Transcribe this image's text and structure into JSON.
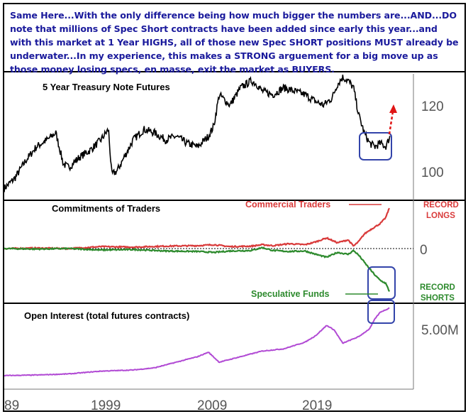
{
  "commentary": "Same Here...With the only difference being how much bigger the numbers are...AND...DO note that millions of Spec Short contracts have been added since early this year...and with this market at 1 Year HIGHS, all of those new Spec SHORT positions MUST already be underwater...In my experience, this makes a STRONG arguement for a big move up as those money losing specs, en masse, exit the market as BUYERS.",
  "colors": {
    "commentary_text": "#1a1a9c",
    "commercial": "#d93a3a",
    "speculative": "#2d8a2d",
    "open_interest": "#b14ad4",
    "highlight_box": "#3344aa",
    "arrow": "#e01515",
    "axis_text": "#555555"
  },
  "chart_data": [
    {
      "type": "line",
      "title": "5 Year Treasury Note Futures",
      "ylim": [
        93,
        128
      ],
      "y_ticks": [
        "120",
        "100"
      ],
      "series": [
        {
          "x": [
            1989.0,
            1990.0,
            1991.0,
            1992.0,
            1993.0,
            1993.8,
            1994.5,
            1995.0,
            1996.0,
            1997.0,
            1998.0,
            1998.7,
            1999.0,
            1999.5,
            2000.0,
            2000.5,
            2001.0,
            2002.0,
            2003.0,
            2004.0,
            2005.0,
            2006.0,
            2007.0,
            2008.0,
            2008.5,
            2009.0,
            2010.0,
            2011.0,
            2012.0,
            2012.5,
            2013.0,
            2014.0,
            2015.0,
            2016.0,
            2017.0,
            2018.0,
            2018.7,
            2019.5,
            2020.0,
            2020.5,
            2021.0,
            2021.5,
            2022.0,
            2022.5,
            2023.0,
            2023.5,
            2024.0,
            2024.5,
            2024.9
          ],
          "values": [
            95,
            98,
            103,
            107,
            109,
            111,
            102,
            101,
            104,
            106,
            109,
            112,
            99,
            100,
            103,
            106,
            109,
            112,
            111,
            109,
            110,
            108,
            107,
            110,
            113,
            122,
            119,
            124,
            126,
            125,
            123,
            122,
            124,
            123,
            122,
            120,
            119,
            121,
            125,
            127,
            126,
            124,
            116,
            111,
            108,
            107,
            108,
            107,
            110
          ]
        }
      ]
    },
    {
      "type": "line",
      "title": "Commitments of Traders",
      "ylim": [
        -1,
        1
      ],
      "y_ticks": [
        "0"
      ],
      "annotations": [
        "RECORD",
        "LONGS",
        "RECORD",
        "SHORTS"
      ],
      "series": [
        {
          "name": "Commercial Traders",
          "x": [
            1989,
            1992,
            1995,
            1998,
            2001,
            2004,
            2007,
            2008.5,
            2010,
            2012,
            2013,
            2014,
            2015.5,
            2017,
            2018,
            2019,
            2020,
            2021,
            2021.5,
            2022,
            2022.5,
            2023,
            2023.5,
            2024,
            2024.5,
            2024.9
          ],
          "values": [
            0,
            0.01,
            0.0,
            0.04,
            0.03,
            0.05,
            0.06,
            0.08,
            0.04,
            0.05,
            0.08,
            0.06,
            0.1,
            0.08,
            0.14,
            0.22,
            0.12,
            0.18,
            0.05,
            0.15,
            0.3,
            0.38,
            0.45,
            0.52,
            0.64,
            0.88
          ]
        },
        {
          "name": "Speculative Funds",
          "x": [
            1989,
            1992,
            1995,
            1998,
            2001,
            2004,
            2007,
            2008.5,
            2010,
            2012,
            2013,
            2014,
            2015.5,
            2017,
            2018,
            2019,
            2020,
            2021,
            2021.5,
            2022,
            2022.5,
            2023,
            2023.5,
            2024,
            2024.5,
            2024.9
          ],
          "values": [
            0,
            -0.01,
            0.0,
            -0.03,
            -0.02,
            -0.05,
            -0.06,
            -0.08,
            -0.05,
            -0.04,
            0.02,
            -0.04,
            -0.06,
            -0.05,
            -0.12,
            -0.18,
            -0.08,
            -0.12,
            -0.04,
            -0.14,
            -0.28,
            -0.42,
            -0.55,
            -0.66,
            -0.72,
            -0.92
          ]
        }
      ]
    },
    {
      "type": "line",
      "title": "Open Interest (total futures contracts)",
      "ylim": [
        0,
        6500000
      ],
      "y_ticks": [
        "5.00M"
      ],
      "series": [
        {
          "x": [
            1989,
            1992,
            1995,
            1998,
            2001,
            2003,
            2005,
            2007,
            2008,
            2009,
            2011,
            2013,
            2015,
            2017,
            2018,
            2019,
            2019.7,
            2020.5,
            2021,
            2022,
            2023,
            2023.5,
            2024,
            2024.5,
            2024.9
          ],
          "values": [
            200000,
            250000,
            350000,
            600000,
            700000,
            900000,
            1400000,
            1900000,
            2300000,
            1400000,
            1900000,
            2400000,
            2600000,
            3200000,
            3800000,
            4700000,
            4300000,
            3100000,
            3300000,
            3700000,
            4400000,
            5300000,
            5900000,
            6100000,
            6300000
          ]
        }
      ]
    },
    {
      "type": "line",
      "x_ticks": [
        "89",
        "1999",
        "2009",
        "2019"
      ]
    }
  ]
}
